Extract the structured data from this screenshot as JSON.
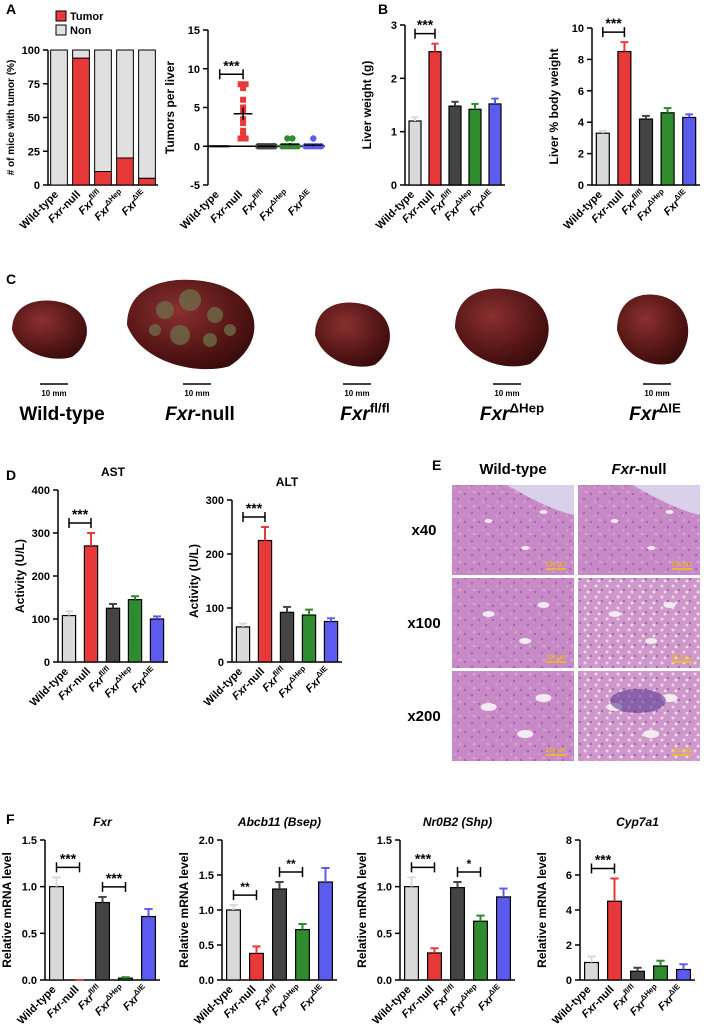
{
  "panels": [
    "A",
    "B",
    "C",
    "D",
    "E",
    "F"
  ],
  "chart_data": [
    {
      "type": "stacked_bar",
      "ylabel": "# of mice with tumor (%)",
      "categories": [
        {
          "text": "Wild-type"
        },
        {
          "italic": "Fxr",
          "text": "-null"
        },
        {
          "italic": "Fxr",
          "sup": "fl/fl"
        },
        {
          "italic": "Fxr",
          "sup": "ΔHep"
        },
        {
          "italic": "Fxr",
          "sup": "ΔIE"
        }
      ],
      "series": [
        {
          "name": "Tumor",
          "color": "#e8393a",
          "values": [
            0,
            94,
            10,
            20,
            5
          ]
        },
        {
          "name": "Non",
          "color": "#e0e0e0",
          "values": [
            100,
            6,
            90,
            80,
            95
          ]
        }
      ],
      "ylim": [
        0,
        100
      ],
      "yticks": [
        0,
        25,
        50,
        75,
        100
      ],
      "legend": "upper left"
    },
    {
      "type": "strip",
      "ylabel": "Tumors per liver",
      "categories": [
        {
          "text": "Wild-type"
        },
        {
          "italic": "Fxr",
          "text": "-null"
        },
        {
          "italic": "Fxr",
          "sup": "fl/fl"
        },
        {
          "italic": "Fxr",
          "sup": "ΔHep"
        },
        {
          "italic": "Fxr",
          "sup": "ΔIE"
        }
      ],
      "points": [
        [
          0,
          0,
          0,
          0,
          0,
          0
        ],
        [
          8,
          8,
          7.5,
          6,
          5,
          4.5,
          3.5,
          3,
          2,
          1.5,
          1,
          1
        ],
        [
          0,
          0,
          0,
          0,
          0,
          0,
          0,
          0
        ],
        [
          0,
          0,
          0,
          0,
          0,
          0,
          1,
          1
        ],
        [
          0,
          0,
          0,
          0,
          0,
          0,
          1
        ]
      ],
      "markers": [
        "dash",
        "square",
        "circle",
        "circle",
        "circle"
      ],
      "colors": [
        "#000000",
        "#e8393a",
        "#444444",
        "#2e8b2e",
        "#5b5bf0"
      ],
      "means": [
        0,
        4.2,
        0,
        0.25,
        0.14
      ],
      "errors": [
        0,
        0.8,
        0,
        0.16,
        0.14
      ],
      "ylim": [
        -5,
        15
      ],
      "yticks": [
        -5,
        0,
        5,
        10,
        15
      ],
      "significance": [
        {
          "label": "***",
          "between": [
            0,
            1
          ]
        }
      ]
    },
    {
      "type": "bar",
      "ylabel": "Liver weight (g)",
      "categories": [
        {
          "text": "Wild-type"
        },
        {
          "italic": "Fxr",
          "text": "-null"
        },
        {
          "italic": "Fxr",
          "sup": "fl/fl"
        },
        {
          "italic": "Fxr",
          "sup": "ΔHep"
        },
        {
          "italic": "Fxr",
          "sup": "ΔIE"
        }
      ],
      "values": [
        1.2,
        2.5,
        1.48,
        1.42,
        1.52
      ],
      "errors": [
        0.07,
        0.15,
        0.08,
        0.1,
        0.1
      ],
      "colors": [
        "#d9d9d9",
        "#e8393a",
        "#444444",
        "#2e8b2e",
        "#5b5bf0"
      ],
      "ylim": [
        0,
        3
      ],
      "yticks": [
        0,
        1,
        2,
        3
      ],
      "significance": [
        {
          "label": "***",
          "between": [
            0,
            1
          ]
        }
      ]
    },
    {
      "type": "bar",
      "ylabel": "Liver % body weight",
      "categories": [
        {
          "text": "Wild-type"
        },
        {
          "italic": "Fxr",
          "text": "-null"
        },
        {
          "italic": "Fxr",
          "sup": "fl/fl"
        },
        {
          "italic": "Fxr",
          "sup": "ΔHep"
        },
        {
          "italic": "Fxr",
          "sup": "ΔIE"
        }
      ],
      "values": [
        3.3,
        8.5,
        4.2,
        4.6,
        4.3
      ],
      "errors": [
        0.15,
        0.6,
        0.2,
        0.3,
        0.2
      ],
      "colors": [
        "#d9d9d9",
        "#e8393a",
        "#444444",
        "#2e8b2e",
        "#5b5bf0"
      ],
      "ylim": [
        0,
        10
      ],
      "yticks": [
        0,
        2,
        4,
        6,
        8,
        10
      ],
      "significance": [
        {
          "label": "***",
          "between": [
            0,
            1
          ]
        }
      ]
    },
    {
      "type": "bar",
      "title": "AST",
      "ylabel": "Activity (U/L)",
      "categories": [
        {
          "text": "Wild-type"
        },
        {
          "italic": "Fxr",
          "text": "-null"
        },
        {
          "italic": "Fxr",
          "sup": "fl/fl"
        },
        {
          "italic": "Fxr",
          "sup": "ΔHep"
        },
        {
          "italic": "Fxr",
          "sup": "ΔIE"
        }
      ],
      "values": [
        108,
        270,
        125,
        145,
        100
      ],
      "errors": [
        10,
        30,
        10,
        8,
        6
      ],
      "colors": [
        "#d9d9d9",
        "#e8393a",
        "#444444",
        "#2e8b2e",
        "#5b5bf0"
      ],
      "ylim": [
        0,
        400
      ],
      "yticks": [
        0,
        100,
        200,
        300,
        400
      ],
      "significance": [
        {
          "label": "***",
          "between": [
            0,
            1
          ]
        }
      ]
    },
    {
      "type": "bar",
      "title": "ALT",
      "ylabel": "Activity (U/L)",
      "categories": [
        {
          "text": "Wild-type"
        },
        {
          "italic": "Fxr",
          "text": "-null"
        },
        {
          "italic": "Fxr",
          "sup": "fl/fl"
        },
        {
          "italic": "Fxr",
          "sup": "ΔHep"
        },
        {
          "italic": "Fxr",
          "sup": "ΔIE"
        }
      ],
      "values": [
        65,
        225,
        92,
        87,
        75
      ],
      "errors": [
        6,
        25,
        10,
        10,
        6
      ],
      "colors": [
        "#d9d9d9",
        "#e8393a",
        "#444444",
        "#2e8b2e",
        "#5b5bf0"
      ],
      "ylim": [
        0,
        300
      ],
      "yticks": [
        0,
        100,
        200,
        300
      ],
      "significance": [
        {
          "label": "***",
          "between": [
            0,
            1
          ]
        }
      ]
    },
    {
      "type": "bar",
      "title": "Fxr",
      "title_italic": true,
      "ylabel": "Relative mRNA level",
      "categories": [
        {
          "text": "Wild-type"
        },
        {
          "italic": "Fxr",
          "text": "-null"
        },
        {
          "italic": "Fxr",
          "sup": "fl/fl"
        },
        {
          "italic": "Fxr",
          "sup": "ΔHep"
        },
        {
          "italic": "Fxr",
          "sup": "ΔIE"
        }
      ],
      "values": [
        1.0,
        0,
        0.83,
        0.02,
        0.68
      ],
      "errors": [
        0.1,
        0,
        0.06,
        0.01,
        0.08
      ],
      "colors": [
        "#d9d9d9",
        "#e8393a",
        "#444444",
        "#2e8b2e",
        "#5b5bf0"
      ],
      "ylim": [
        0,
        1.5
      ],
      "yticks": [
        {
          "value": 0,
          "label": "0.0"
        },
        0.5,
        {
          "value": 1,
          "label": "1.0"
        },
        1.5
      ],
      "significance": [
        {
          "label": "***",
          "between": [
            0,
            1
          ]
        },
        {
          "label": "***",
          "between": [
            2,
            3
          ]
        }
      ]
    },
    {
      "type": "bar",
      "title": "Abcb11 (Bsep)",
      "title_italic": true,
      "ylabel": "Relative mRNA level",
      "categories": [
        {
          "text": "Wild-type"
        },
        {
          "italic": "Fxr",
          "text": "-null"
        },
        {
          "italic": "Fxr",
          "sup": "fl/fl"
        },
        {
          "italic": "Fxr",
          "sup": "ΔHep"
        },
        {
          "italic": "Fxr",
          "sup": "ΔIE"
        }
      ],
      "values": [
        1.0,
        0.38,
        1.3,
        0.72,
        1.4
      ],
      "errors": [
        0.07,
        0.1,
        0.1,
        0.08,
        0.2
      ],
      "colors": [
        "#d9d9d9",
        "#e8393a",
        "#444444",
        "#2e8b2e",
        "#5b5bf0"
      ],
      "ylim": [
        0,
        2
      ],
      "yticks": [
        {
          "value": 0,
          "label": "0.0"
        },
        0.5,
        {
          "value": 1,
          "label": "1.0"
        },
        1.5,
        {
          "value": 2,
          "label": "2.0"
        }
      ],
      "significance": [
        {
          "label": "**",
          "between": [
            0,
            1
          ]
        },
        {
          "label": "**",
          "between": [
            2,
            3
          ]
        }
      ]
    },
    {
      "type": "bar",
      "title": "Nr0B2 (Shp)",
      "title_italic": true,
      "ylabel": "Relative mRNA level",
      "categories": [
        {
          "text": "Wild-type"
        },
        {
          "italic": "Fxr",
          "text": "-null"
        },
        {
          "italic": "Fxr",
          "sup": "fl/fl"
        },
        {
          "italic": "Fxr",
          "sup": "ΔHep"
        },
        {
          "italic": "Fxr",
          "sup": "ΔIE"
        }
      ],
      "values": [
        1.0,
        0.29,
        0.99,
        0.63,
        0.89
      ],
      "errors": [
        0.1,
        0.05,
        0.06,
        0.06,
        0.09
      ],
      "colors": [
        "#d9d9d9",
        "#e8393a",
        "#444444",
        "#2e8b2e",
        "#5b5bf0"
      ],
      "ylim": [
        0,
        1.5
      ],
      "yticks": [
        {
          "value": 0,
          "label": "0.0"
        },
        0.5,
        {
          "value": 1,
          "label": "1.0"
        },
        1.5
      ],
      "significance": [
        {
          "label": "***",
          "between": [
            0,
            1
          ]
        },
        {
          "label": "*",
          "between": [
            2,
            3
          ]
        }
      ]
    },
    {
      "type": "bar",
      "title": "Cyp7a1",
      "title_italic": true,
      "ylabel": "Relative mRNA level",
      "categories": [
        {
          "text": "Wild-type"
        },
        {
          "italic": "Fxr",
          "text": "-null"
        },
        {
          "italic": "Fxr",
          "sup": "fl/fl"
        },
        {
          "italic": "Fxr",
          "sup": "ΔHep"
        },
        {
          "italic": "Fxr",
          "sup": "ΔIE"
        }
      ],
      "values": [
        1.0,
        4.5,
        0.5,
        0.8,
        0.6
      ],
      "errors": [
        0.35,
        1.3,
        0.2,
        0.3,
        0.3
      ],
      "colors": [
        "#d9d9d9",
        "#e8393a",
        "#444444",
        "#2e8b2e",
        "#5b5bf0"
      ],
      "ylim": [
        0,
        8
      ],
      "yticks": [
        0,
        2,
        4,
        6,
        8
      ],
      "significance": [
        {
          "label": "***",
          "between": [
            0,
            1
          ]
        }
      ]
    }
  ],
  "photos": {
    "scale_labels": [
      "10 mm",
      "10 mm",
      "10 mm",
      "10 mm",
      "10 mm"
    ],
    "labels": [
      {
        "text": "Wild-type"
      },
      {
        "italic": "Fxr",
        "text": "-null"
      },
      {
        "italic": "Fxr",
        "sup": "fl/fl"
      },
      {
        "italic": "Fxr",
        "sup": "ΔHep"
      },
      {
        "italic": "Fxr",
        "sup": "ΔIE"
      }
    ]
  },
  "histology": {
    "columns": [
      {
        "text": "Wild-type"
      },
      {
        "italic": "Fxr",
        "text": "-null"
      }
    ],
    "rows": [
      "x40",
      "x100",
      "x200"
    ],
    "scale_labels": [
      [
        "500 μm",
        "500 μm"
      ],
      [
        "200 μm",
        "200 μm"
      ],
      [
        "100 μm",
        "100 μm"
      ]
    ]
  }
}
